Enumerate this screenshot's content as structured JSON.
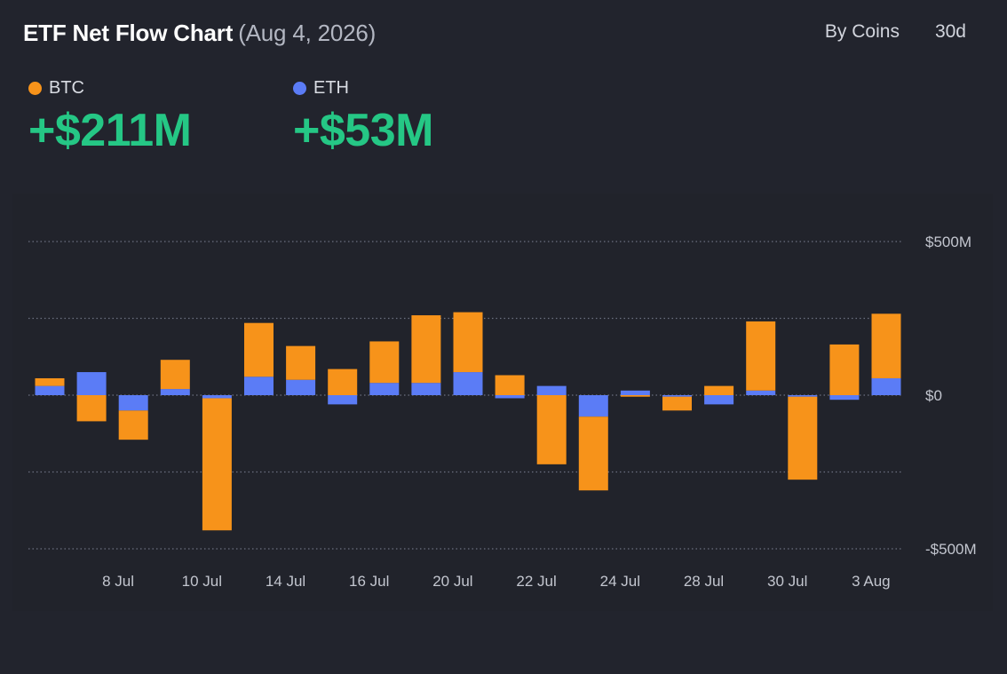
{
  "header": {
    "title": "ETF Net Flow Chart",
    "date": "(Aug 4, 2026)",
    "controls": [
      "By Coins",
      "30d"
    ]
  },
  "summary": [
    {
      "name": "BTC",
      "value": "+$211M",
      "color": "#f7931a"
    },
    {
      "name": "ETH",
      "value": "+$53M",
      "color": "#5b7cf6"
    }
  ],
  "chart_data": {
    "type": "bar",
    "stacked": true,
    "title": "",
    "xlabel": "",
    "ylabel": "",
    "ylim": [
      -500,
      500
    ],
    "y_ticks": [
      {
        "value": 500,
        "label": "$500M"
      },
      {
        "value": 0,
        "label": "$0"
      },
      {
        "value": -500,
        "label": "-$500M"
      }
    ],
    "gridlines": [
      500,
      250,
      0,
      -250,
      -500
    ],
    "grid": true,
    "legend": "top-left",
    "x_tick_labels": [
      "8 Jul",
      "10 Jul",
      "14 Jul",
      "16 Jul",
      "20 Jul",
      "22 Jul",
      "24 Jul",
      "28 Jul",
      "30 Jul",
      "3 Aug"
    ],
    "bars": 21,
    "x_tick_bar_index": [
      1,
      3,
      5,
      7,
      9,
      11,
      13,
      15,
      17,
      19
    ],
    "series": [
      {
        "name": "ETH",
        "color": "#5b7cf6",
        "values": [
          30,
          75,
          -50,
          20,
          -10,
          60,
          50,
          -30,
          40,
          40,
          75,
          -10,
          30,
          -70,
          15,
          -5,
          -30,
          15,
          -5,
          -15,
          55
        ]
      },
      {
        "name": "BTC",
        "color": "#f7931a",
        "values": [
          25,
          -85,
          -95,
          95,
          -430,
          175,
          110,
          85,
          135,
          220,
          195,
          65,
          -225,
          -240,
          -5,
          -45,
          30,
          225,
          -270,
          165,
          210
        ]
      }
    ]
  }
}
